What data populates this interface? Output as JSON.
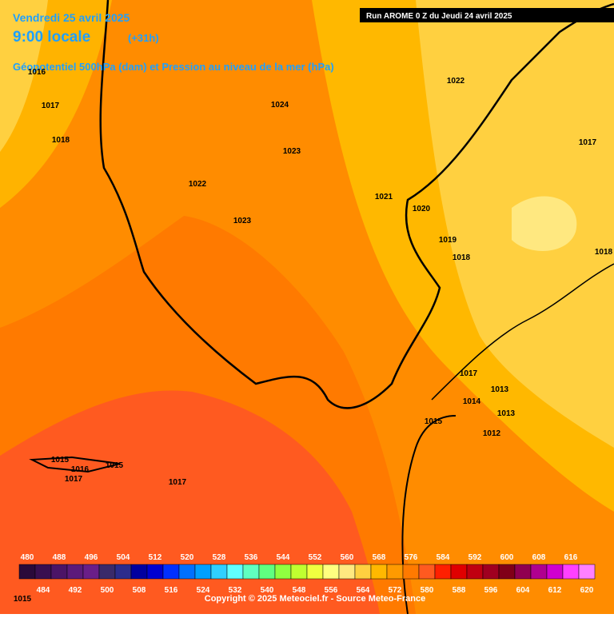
{
  "header": {
    "date": "Vendredi 25 avril 2025",
    "time": "9:00 locale",
    "offset": "(+31h)",
    "subtitle": "Géopotentiel 500hPa (dam) et Pression au niveau de la mer (hPa)",
    "run": "Run AROME 0 Z du Jeudi 24 avril 2025"
  },
  "isobars": [
    1016,
    1017,
    1018,
    1024,
    1022,
    1023,
    1022,
    1023,
    1021,
    1020,
    1019,
    1018,
    1017,
    1018,
    1017,
    1014,
    1013,
    1013,
    1015,
    1012,
    1015,
    1016,
    1015,
    1017,
    1017,
    1015
  ],
  "legend": {
    "values": [
      480,
      484,
      488,
      492,
      496,
      500,
      504,
      508,
      512,
      516,
      520,
      524,
      528,
      532,
      536,
      540,
      544,
      548,
      552,
      556,
      560,
      564,
      568,
      572,
      576,
      580,
      584,
      588,
      592,
      596,
      600,
      604,
      608,
      612,
      616,
      620
    ],
    "colors": [
      "#2a0a3a",
      "#3a0f50",
      "#4b1466",
      "#5c1a7a",
      "#6a1e88",
      "#3a2a6a",
      "#2c2c8c",
      "#0000a0",
      "#0000d0",
      "#0030ff",
      "#0070ff",
      "#00a0ff",
      "#30d0ff",
      "#60ffff",
      "#60ffc0",
      "#60ff80",
      "#90ff40",
      "#c0ff30",
      "#f0ff40",
      "#ffff80",
      "#ffe880",
      "#ffd040",
      "#ffb800",
      "#ff9a00",
      "#ff7a00",
      "#ff5a20",
      "#ff2000",
      "#e00000",
      "#c00010",
      "#a00020",
      "#800018",
      "#900050",
      "#b00090",
      "#d000d0",
      "#ff40ff",
      "#ff80ff"
    ]
  },
  "footer": {
    "copyright": "Copyright © 2025 Meteociel.fr - Source Meteo-France"
  }
}
